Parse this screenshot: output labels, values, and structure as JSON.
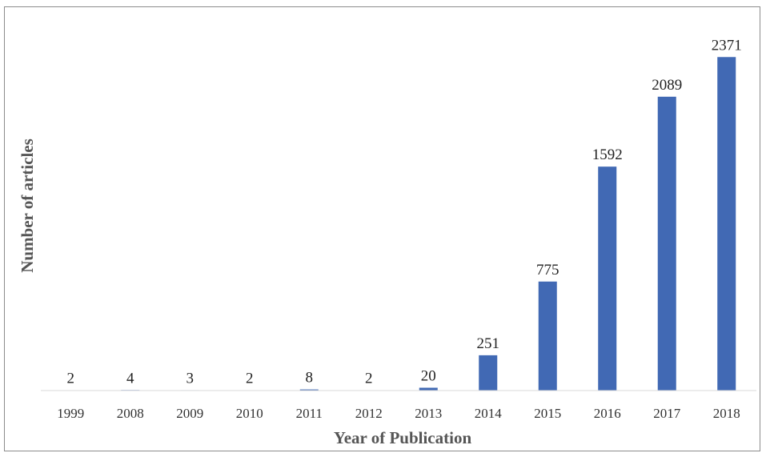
{
  "chart_data": {
    "type": "bar",
    "title": "",
    "xlabel": "Year of Publication",
    "ylabel": "Number of articles",
    "categories": [
      "1999",
      "2008",
      "2009",
      "2010",
      "2011",
      "2012",
      "2013",
      "2014",
      "2015",
      "2016",
      "2017",
      "2018"
    ],
    "values": [
      2,
      4,
      3,
      2,
      8,
      2,
      20,
      251,
      775,
      1592,
      2089,
      2371
    ],
    "data_labels": [
      "2",
      "4",
      "3",
      "2",
      "8",
      "2",
      "20",
      "251",
      "775",
      "1592",
      "2089",
      "2371"
    ],
    "ylim": [
      0,
      2500
    ],
    "grid": false,
    "legend": "none",
    "bar_color": "#4169B4"
  }
}
